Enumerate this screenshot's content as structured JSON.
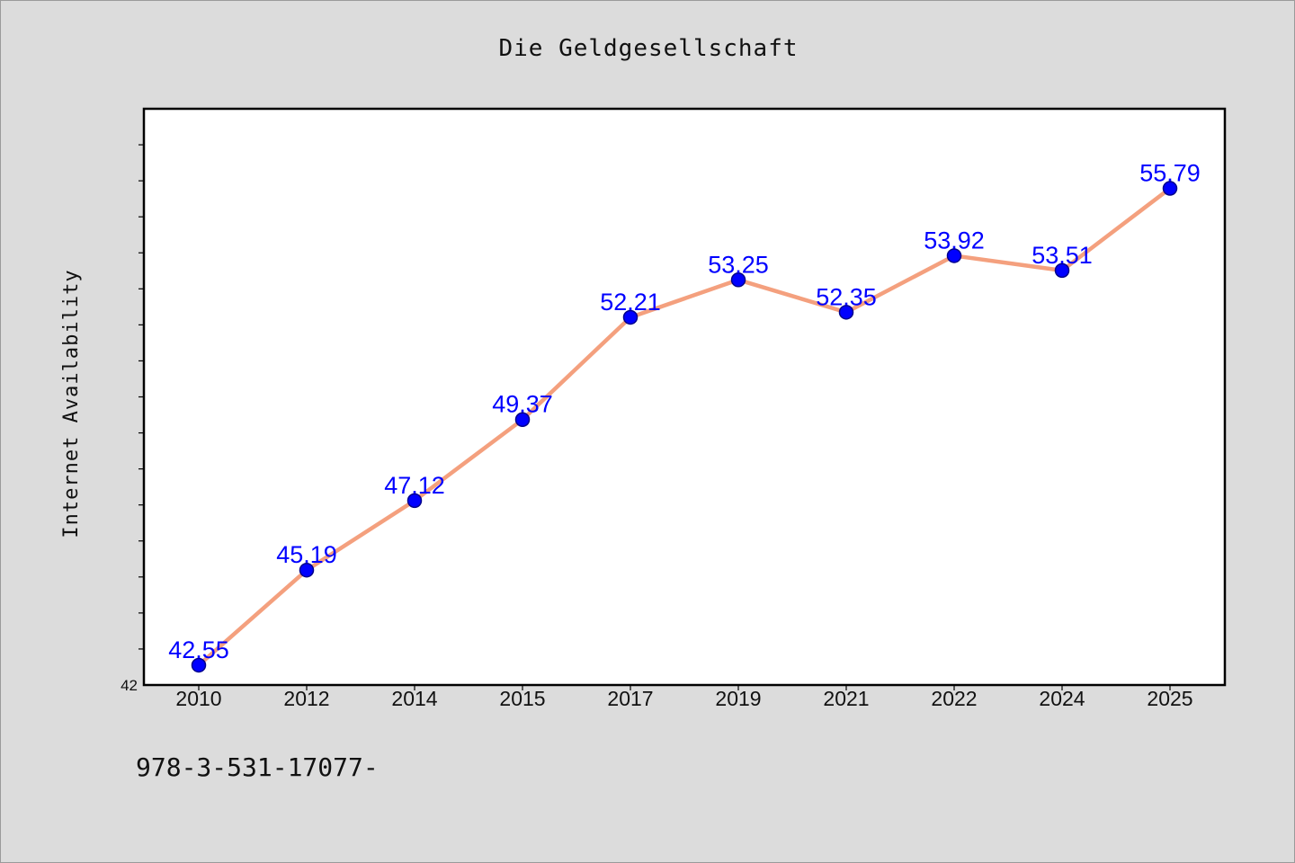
{
  "chart_data": {
    "type": "line",
    "title": "Die Geldgesellschaft",
    "xlabel": "",
    "ylabel": "Internet Availability",
    "categories": [
      "2010",
      "2012",
      "2014",
      "2015",
      "2017",
      "2019",
      "2021",
      "2022",
      "2024",
      "2025"
    ],
    "series": [
      {
        "values": [
          42.55,
          45.19,
          47.12,
          49.37,
          52.21,
          53.25,
          52.35,
          53.92,
          53.51,
          55.79
        ]
      }
    ],
    "value_labels": [
      "42.55",
      "45.19",
      "47.12",
      "49.37",
      "52.21",
      "53.25",
      "52.35",
      "53.92",
      "53.51",
      "55.79"
    ],
    "y_tick_labels": [
      "42"
    ],
    "ylim": [
      42,
      58
    ],
    "y_minor_step": 1,
    "grid": false,
    "legend": "none",
    "colors": {
      "line": "#f4a07e",
      "marker": "#0000ff",
      "marker_edge": "#00008b",
      "value_label": "#0000ff",
      "background": "#dcdcdc",
      "plot_background": "#ffffff"
    }
  },
  "footer": {
    "text": "978-3-531-17077-"
  }
}
